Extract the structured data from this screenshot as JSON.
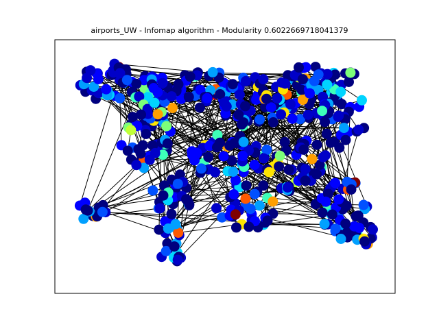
{
  "title": "airports_UW - Infomap algorithm - Modularity 0.6022669718041379",
  "graph": {
    "dataset": "airports_UW",
    "algorithm": "Infomap",
    "modularity": 0.6022669718041379,
    "node_colormap": "jet",
    "edge_color": "#000000",
    "axes_frame": true,
    "ticks": false,
    "palette": [
      "#00007f",
      "#0000c8",
      "#0000ff",
      "#0050ff",
      "#00a0ff",
      "#00d4ff",
      "#3dffb9",
      "#7dff79",
      "#c1ff36",
      "#ffe500",
      "#ff9f00",
      "#ff5a00",
      "#e50000",
      "#7f0000"
    ]
  }
}
